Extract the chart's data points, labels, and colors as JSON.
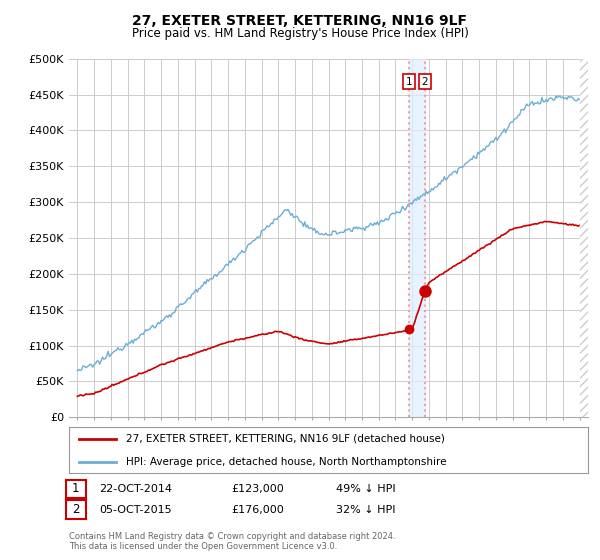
{
  "title": "27, EXETER STREET, KETTERING, NN16 9LF",
  "subtitle": "Price paid vs. HM Land Registry's House Price Index (HPI)",
  "ylim": [
    0,
    500000
  ],
  "yticks": [
    0,
    50000,
    100000,
    150000,
    200000,
    250000,
    300000,
    350000,
    400000,
    450000,
    500000
  ],
  "ytick_labels": [
    "£0",
    "£50K",
    "£100K",
    "£150K",
    "£200K",
    "£250K",
    "£300K",
    "£350K",
    "£400K",
    "£450K",
    "£500K"
  ],
  "hpi_color": "#6baed6",
  "price_color": "#cc0000",
  "background_color": "#ffffff",
  "grid_color": "#cccccc",
  "legend_label_price": "27, EXETER STREET, KETTERING, NN16 9LF (detached house)",
  "legend_label_hpi": "HPI: Average price, detached house, North Northamptonshire",
  "annotation_1_date": "22-OCT-2014",
  "annotation_1_price": "£123,000",
  "annotation_1_hpi": "49% ↓ HPI",
  "annotation_2_date": "05-OCT-2015",
  "annotation_2_price": "£176,000",
  "annotation_2_hpi": "32% ↓ HPI",
  "footer": "Contains HM Land Registry data © Crown copyright and database right 2024.\nThis data is licensed under the Open Government Licence v3.0.",
  "sale_year_1": 2014.81,
  "sale_year_2": 2015.76,
  "sale_price_1": 123000,
  "sale_price_2": 176000,
  "vline_color": "#ff9999",
  "shade_color": "#ddeeff",
  "box_edge_color": "#cc0000",
  "xlim_start": 1995.0,
  "xlim_end": 2025.5
}
